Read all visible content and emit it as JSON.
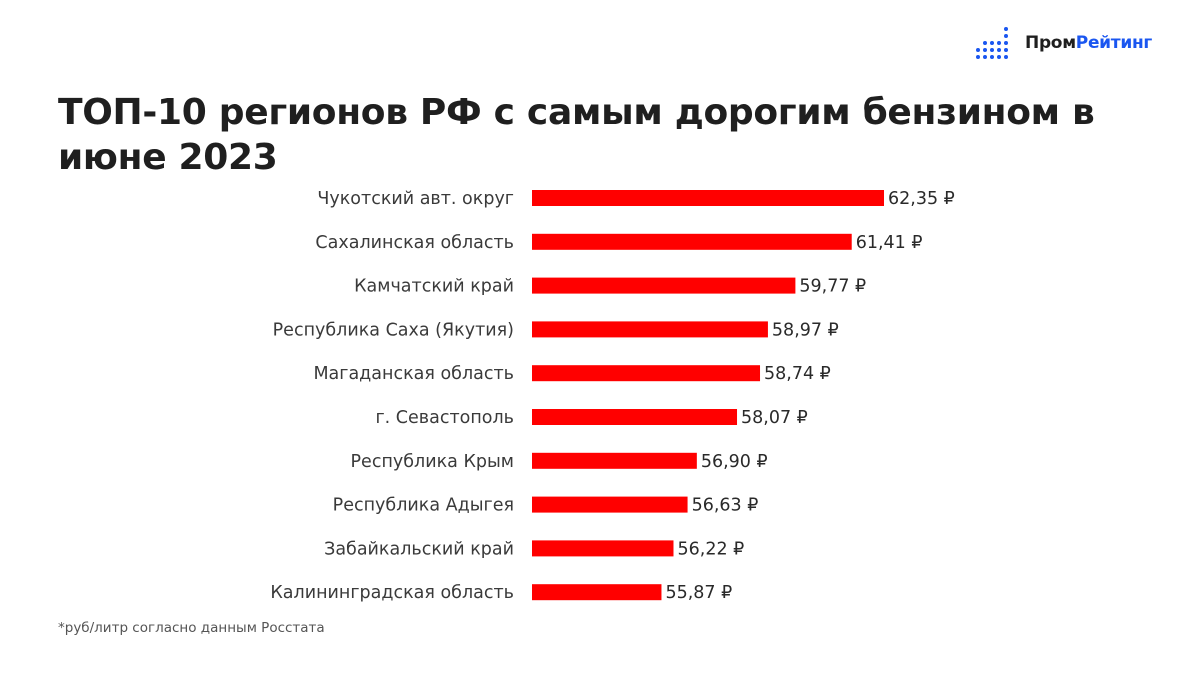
{
  "logo": {
    "name_part1": "Пром",
    "name_part2": "Рейтинг",
    "icon": "dot-matrix-icon",
    "accent_color": "#1a56f0"
  },
  "title": "ТОП-10 регионов РФ с самым дорогим бензином в июне 2023",
  "footnote": "*руб/литр согласно данным Росстата",
  "chart_data": {
    "type": "bar",
    "orientation": "horizontal",
    "categories": [
      "Чукотский авт. округ",
      "Сахалинская область",
      "Камчатский край",
      "Республика Саха (Якутия)",
      "Магаданская область",
      "г. Севастополь",
      "Республика Крым",
      "Республика Адыгея",
      "Забайкальский край",
      "Калининградская область"
    ],
    "values": [
      62.35,
      61.41,
      59.77,
      58.97,
      58.74,
      58.07,
      56.9,
      56.63,
      56.22,
      55.87
    ],
    "value_labels": [
      "62,35 ₽",
      "61,41 ₽",
      "59,77 ₽",
      "58,97 ₽",
      "58,74 ₽",
      "58,07 ₽",
      "56,90 ₽",
      "56,63 ₽",
      "56,22 ₽",
      "55,87 ₽"
    ],
    "xlim": [
      52.1,
      62.35
    ],
    "bar_color": "#ff0000",
    "grid": false,
    "legend": "none"
  }
}
